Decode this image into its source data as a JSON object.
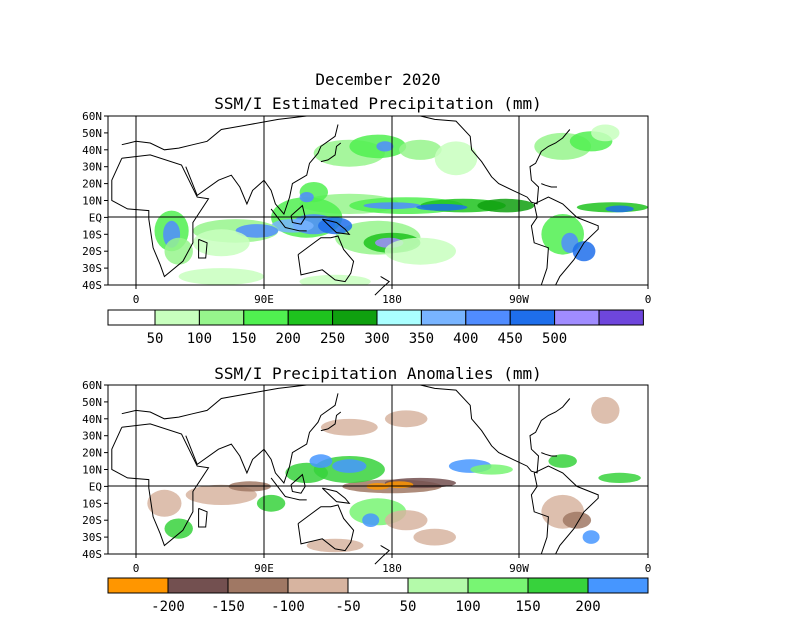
{
  "chart_data": [
    {
      "type": "heatmap",
      "title": "December 2020",
      "subtitle": "SSM/I Estimated Precipitation (mm)",
      "xlabel": "",
      "ylabel": "",
      "x_ticks": [
        "0",
        "90E",
        "180",
        "90W",
        "0"
      ],
      "y_ticks": [
        "60N",
        "50N",
        "40N",
        "30N",
        "20N",
        "10N",
        "EQ",
        "10S",
        "20S",
        "30S",
        "40S"
      ],
      "lat_range": [
        -40,
        60
      ],
      "lon_range": [
        0,
        360
      ],
      "grid": "lines at 0, 90E, 180, 90W and equator",
      "colorbar": {
        "labels": [
          "50",
          "100",
          "150",
          "200",
          "250",
          "300",
          "350",
          "400",
          "450",
          "500"
        ],
        "colors": [
          "#ffffff",
          "#c8ffbe",
          "#96f58c",
          "#50f050",
          "#1ec31e",
          "#0fa00f",
          "#aaffff",
          "#78b4ff",
          "#508cff",
          "#1e6eeb",
          "#a08cff",
          "#6e46dc"
        ]
      }
    },
    {
      "type": "heatmap",
      "title": "SSM/I Precipitation Anomalies (mm)",
      "xlabel": "",
      "ylabel": "",
      "x_ticks": [
        "0",
        "90E",
        "180",
        "90W",
        "0"
      ],
      "y_ticks": [
        "60N",
        "50N",
        "40N",
        "30N",
        "20N",
        "10N",
        "EQ",
        "10S",
        "20S",
        "30S",
        "40S"
      ],
      "lat_range": [
        -40,
        60
      ],
      "lon_range": [
        0,
        360
      ],
      "grid": "lines at 0, 90E, 180, 90W and equator",
      "colorbar": {
        "labels": [
          "-200",
          "-150",
          "-100",
          "-50",
          "50",
          "100",
          "150",
          "200"
        ],
        "colors": [
          "#ff9600",
          "#735050",
          "#a07864",
          "#d7b4a0",
          "#ffffff",
          "#b4faaa",
          "#78f573",
          "#37d23c",
          "#4696ff"
        ]
      }
    }
  ]
}
